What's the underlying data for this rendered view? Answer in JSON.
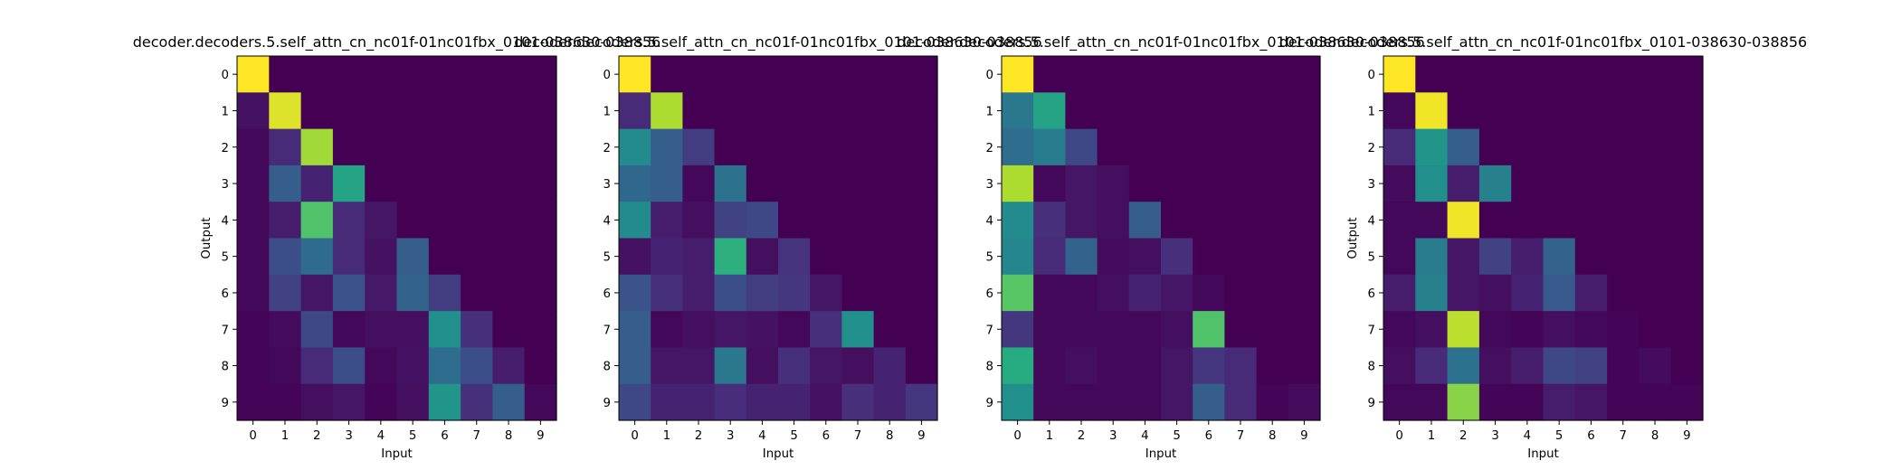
{
  "chart_data": [
    {
      "type": "heatmap",
      "title": "decoder.decoders.5.self_attn_cn_nc01f-01nc01fbx_0101-038630-038856",
      "xlabel": "Input",
      "ylabel": "Output",
      "x_ticks": [
        "0",
        "1",
        "2",
        "3",
        "4",
        "5",
        "6",
        "7",
        "8",
        "9"
      ],
      "y_ticks": [
        "0",
        "1",
        "2",
        "3",
        "4",
        "5",
        "6",
        "7",
        "8",
        "9"
      ],
      "colormap": "viridis",
      "vlim": [
        0,
        1
      ],
      "matrix": [
        [
          1.0,
          0,
          0,
          0,
          0,
          0,
          0,
          0,
          0,
          0
        ],
        [
          0.05,
          0.95,
          0,
          0,
          0,
          0,
          0,
          0,
          0,
          0
        ],
        [
          0.02,
          0.12,
          0.86,
          0,
          0,
          0,
          0,
          0,
          0,
          0
        ],
        [
          0.02,
          0.3,
          0.1,
          0.58,
          0,
          0,
          0,
          0,
          0,
          0
        ],
        [
          0.02,
          0.08,
          0.72,
          0.12,
          0.06,
          0,
          0,
          0,
          0,
          0
        ],
        [
          0.02,
          0.24,
          0.35,
          0.12,
          0.05,
          0.3,
          0,
          0,
          0,
          0
        ],
        [
          0.02,
          0.2,
          0.06,
          0.26,
          0.07,
          0.32,
          0.18,
          0,
          0,
          0
        ],
        [
          0.01,
          0.03,
          0.22,
          0.02,
          0.04,
          0.04,
          0.5,
          0.14,
          0,
          0
        ],
        [
          0.01,
          0.02,
          0.12,
          0.24,
          0.02,
          0.05,
          0.36,
          0.24,
          0.08,
          0
        ],
        [
          0.01,
          0.01,
          0.04,
          0.06,
          0.01,
          0.04,
          0.52,
          0.14,
          0.3,
          0.02
        ]
      ]
    },
    {
      "type": "heatmap",
      "title": "decoder.decoders.5.self_attn_cn_nc01f-01nc01fbx_0101-038630-038856",
      "xlabel": "Input",
      "ylabel": "",
      "x_ticks": [
        "0",
        "1",
        "2",
        "3",
        "4",
        "5",
        "6",
        "7",
        "8",
        "9"
      ],
      "y_ticks": [
        "0",
        "1",
        "2",
        "3",
        "4",
        "5",
        "6",
        "7",
        "8",
        "9"
      ],
      "colormap": "viridis",
      "vlim": [
        0,
        1
      ],
      "matrix": [
        [
          1.0,
          0,
          0,
          0,
          0,
          0,
          0,
          0,
          0,
          0
        ],
        [
          0.12,
          0.88,
          0,
          0,
          0,
          0,
          0,
          0,
          0,
          0
        ],
        [
          0.48,
          0.3,
          0.18,
          0,
          0,
          0,
          0,
          0,
          0,
          0
        ],
        [
          0.34,
          0.3,
          0.02,
          0.38,
          0,
          0,
          0,
          0,
          0,
          0
        ],
        [
          0.48,
          0.08,
          0.04,
          0.2,
          0.22,
          0,
          0,
          0,
          0,
          0
        ],
        [
          0.05,
          0.1,
          0.08,
          0.64,
          0.04,
          0.15,
          0,
          0,
          0,
          0
        ],
        [
          0.26,
          0.14,
          0.08,
          0.24,
          0.18,
          0.16,
          0.06,
          0,
          0,
          0
        ],
        [
          0.3,
          0.02,
          0.04,
          0.06,
          0.05,
          0.02,
          0.14,
          0.5,
          0,
          0
        ],
        [
          0.3,
          0.06,
          0.06,
          0.4,
          0.04,
          0.14,
          0.06,
          0.04,
          0.1,
          0
        ],
        [
          0.22,
          0.1,
          0.1,
          0.13,
          0.1,
          0.1,
          0.05,
          0.14,
          0.1,
          0.16
        ]
      ]
    },
    {
      "type": "heatmap",
      "title": "decoder.decoders.5.self_attn_cn_nc01f-01nc01fbx_0101-038630-038856",
      "xlabel": "Input",
      "ylabel": "",
      "x_ticks": [
        "0",
        "1",
        "2",
        "3",
        "4",
        "5",
        "6",
        "7",
        "8",
        "9"
      ],
      "y_ticks": [
        "0",
        "1",
        "2",
        "3",
        "4",
        "5",
        "6",
        "7",
        "8",
        "9"
      ],
      "colormap": "viridis",
      "vlim": [
        0,
        1
      ],
      "matrix": [
        [
          1.0,
          0,
          0,
          0,
          0,
          0,
          0,
          0,
          0,
          0
        ],
        [
          0.4,
          0.58,
          0,
          0,
          0,
          0,
          0,
          0,
          0,
          0
        ],
        [
          0.36,
          0.42,
          0.22,
          0,
          0,
          0,
          0,
          0,
          0,
          0
        ],
        [
          0.88,
          0.02,
          0.06,
          0.04,
          0,
          0,
          0,
          0,
          0,
          0
        ],
        [
          0.48,
          0.14,
          0.06,
          0.04,
          0.3,
          0,
          0,
          0,
          0,
          0
        ],
        [
          0.46,
          0.12,
          0.32,
          0.03,
          0.04,
          0.14,
          0,
          0,
          0,
          0
        ],
        [
          0.74,
          0.02,
          0.02,
          0.04,
          0.1,
          0.06,
          0.02,
          0,
          0,
          0
        ],
        [
          0.16,
          0.02,
          0.02,
          0.02,
          0.02,
          0.04,
          0.72,
          0,
          0,
          0
        ],
        [
          0.62,
          0.02,
          0.04,
          0.02,
          0.02,
          0.06,
          0.16,
          0.12,
          0,
          0
        ],
        [
          0.5,
          0.02,
          0.02,
          0.02,
          0.02,
          0.06,
          0.3,
          0.12,
          0.01,
          0.03
        ]
      ]
    },
    {
      "type": "heatmap",
      "title": "decoder.decoders.5.self_attn_cn_nc01f-01nc01fbx_0101-038630-038856",
      "xlabel": "Input",
      "ylabel": "Output",
      "x_ticks": [
        "0",
        "1",
        "2",
        "3",
        "4",
        "5",
        "6",
        "7",
        "8",
        "9"
      ],
      "y_ticks": [
        "0",
        "1",
        "2",
        "3",
        "4",
        "5",
        "6",
        "7",
        "8",
        "9"
      ],
      "colormap": "viridis",
      "vlim": [
        0,
        1
      ],
      "matrix": [
        [
          1.0,
          0,
          0,
          0,
          0,
          0,
          0,
          0,
          0,
          0
        ],
        [
          0.02,
          0.98,
          0,
          0,
          0,
          0,
          0,
          0,
          0,
          0
        ],
        [
          0.12,
          0.52,
          0.3,
          0,
          0,
          0,
          0,
          0,
          0,
          0
        ],
        [
          0.03,
          0.5,
          0.08,
          0.44,
          0,
          0,
          0,
          0,
          0,
          0
        ],
        [
          0.02,
          0.02,
          0.98,
          0,
          0,
          0,
          0,
          0,
          0,
          0
        ],
        [
          0.02,
          0.42,
          0.06,
          0.2,
          0.08,
          0.32,
          0,
          0,
          0,
          0
        ],
        [
          0.08,
          0.44,
          0.06,
          0.04,
          0.1,
          0.28,
          0.08,
          0,
          0,
          0
        ],
        [
          0.02,
          0.04,
          0.9,
          0.02,
          0.01,
          0.04,
          0.02,
          0.01,
          0,
          0
        ],
        [
          0.04,
          0.12,
          0.38,
          0.04,
          0.08,
          0.22,
          0.2,
          0.01,
          0.03,
          0
        ],
        [
          0.02,
          0.02,
          0.82,
          0.01,
          0.01,
          0.08,
          0.06,
          0.01,
          0.01,
          0.01
        ]
      ]
    }
  ]
}
